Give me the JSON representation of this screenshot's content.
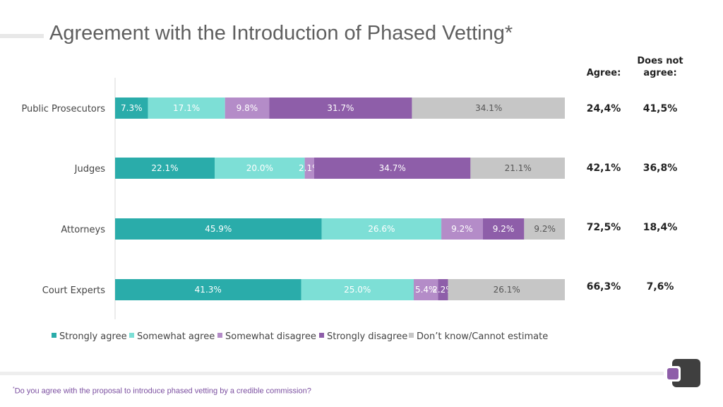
{
  "title": "Agreement with the Introduction of Phased Vetting*",
  "summary": {
    "agree_header": "Agree:",
    "not_agree_header": "Does not agree:",
    "rows": [
      {
        "agree": "24,4%",
        "not_agree": "41,5%"
      },
      {
        "agree": "42,1%",
        "not_agree": "36,8%"
      },
      {
        "agree": "72,5%",
        "not_agree": "18,4%"
      },
      {
        "agree": "66,3%",
        "not_agree": "7,6%"
      }
    ]
  },
  "footnote": {
    "marker": "*",
    "text": "Do you agree with the proposal to introduce phased vetting by a credible commission?"
  },
  "colors": {
    "strongly_agree": "#2aacaa",
    "somewhat_agree": "#7ddfd6",
    "somewhat_disagree": "#b48cc8",
    "strongly_disagree": "#8e5ea9",
    "dont_know": "#c6c6c6"
  },
  "chart_data": {
    "type": "bar",
    "orientation": "horizontal",
    "stacked": true,
    "categories": [
      "Public Prosecutors",
      "Judges",
      "Attorneys",
      "Court Experts"
    ],
    "series": [
      {
        "name": "Strongly agree",
        "values": [
          7.3,
          22.1,
          45.9,
          41.3
        ],
        "labels": [
          "7.3%",
          "22.1%",
          "45.9%",
          "41.3%"
        ]
      },
      {
        "name": "Somewhat agree",
        "values": [
          17.1,
          20.0,
          26.6,
          25.0
        ],
        "labels": [
          "17.1%",
          "20.0%",
          "26.6%",
          "25.0%"
        ]
      },
      {
        "name": "Somewhat disagree",
        "values": [
          9.8,
          2.1,
          9.2,
          5.4
        ],
        "labels": [
          "9.8%",
          "2.1%",
          "9.2%",
          "5.4%"
        ]
      },
      {
        "name": "Strongly disagree",
        "values": [
          31.7,
          34.7,
          9.2,
          2.2
        ],
        "labels": [
          "31.7%",
          "34.7%",
          "9.2%",
          "2.2%"
        ]
      },
      {
        "name": "Don’t know/Cannot estimate",
        "values": [
          34.1,
          21.1,
          9.2,
          26.1
        ],
        "labels": [
          "34.1%",
          "21.1%",
          "9.2%",
          "26.1%"
        ]
      }
    ],
    "xlim": [
      0,
      100
    ],
    "legend_position": "bottom",
    "grid": false
  }
}
